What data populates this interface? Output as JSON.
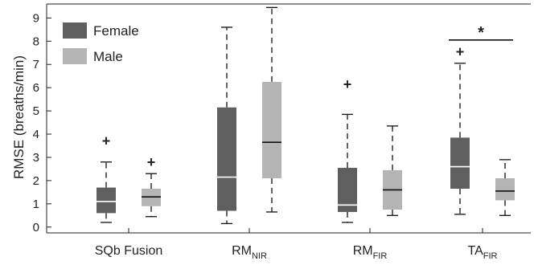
{
  "chart_data": {
    "type": "box",
    "ylabel": "RMSE (breaths/min)",
    "ylim": [
      -0.25,
      9.6
    ],
    "yticks": [
      0,
      1,
      2,
      3,
      4,
      5,
      6,
      7,
      8,
      9
    ],
    "categories": [
      {
        "main": "SQb Fusion",
        "sub": ""
      },
      {
        "main": "RM",
        "sub": "NIR"
      },
      {
        "main": "RM",
        "sub": "FIR"
      },
      {
        "main": "TA",
        "sub": "FIR"
      }
    ],
    "series": [
      {
        "name": "Female",
        "color": "#5f5f5f",
        "median_color": "#ffffff",
        "boxes": [
          {
            "whisker_low": 0.2,
            "q1": 0.6,
            "median": 1.1,
            "q3": 1.7,
            "whisker_high": 2.8,
            "outliers": [
              3.7
            ]
          },
          {
            "whisker_low": 0.15,
            "q1": 0.7,
            "median": 2.15,
            "q3": 5.15,
            "whisker_high": 8.6,
            "outliers": []
          },
          {
            "whisker_low": 0.2,
            "q1": 0.65,
            "median": 0.95,
            "q3": 2.55,
            "whisker_high": 4.85,
            "outliers": [
              6.15
            ]
          },
          {
            "whisker_low": 0.55,
            "q1": 1.65,
            "median": 2.6,
            "q3": 3.85,
            "whisker_high": 7.05,
            "outliers": [
              7.55
            ]
          }
        ]
      },
      {
        "name": "Male",
        "color": "#b4b4b4",
        "median_color": "#111111",
        "boxes": [
          {
            "whisker_low": 0.45,
            "q1": 0.9,
            "median": 1.3,
            "q3": 1.65,
            "whisker_high": 2.3,
            "outliers": [
              2.8
            ]
          },
          {
            "whisker_low": 0.65,
            "q1": 2.1,
            "median": 3.65,
            "q3": 6.25,
            "whisker_high": 9.45,
            "outliers": []
          },
          {
            "whisker_low": 0.5,
            "q1": 0.75,
            "median": 1.6,
            "q3": 2.45,
            "whisker_high": 4.35,
            "outliers": []
          },
          {
            "whisker_low": 0.5,
            "q1": 1.15,
            "median": 1.55,
            "q3": 2.1,
            "whisker_high": 2.9,
            "outliers": []
          }
        ]
      }
    ],
    "outlier_marker": "+",
    "outlier_color": "#7a0f0f",
    "grid": false,
    "legend": {
      "placement": "top-left"
    },
    "significance": [
      {
        "category_index": 3,
        "label": "*",
        "y": 8.05
      }
    ]
  }
}
